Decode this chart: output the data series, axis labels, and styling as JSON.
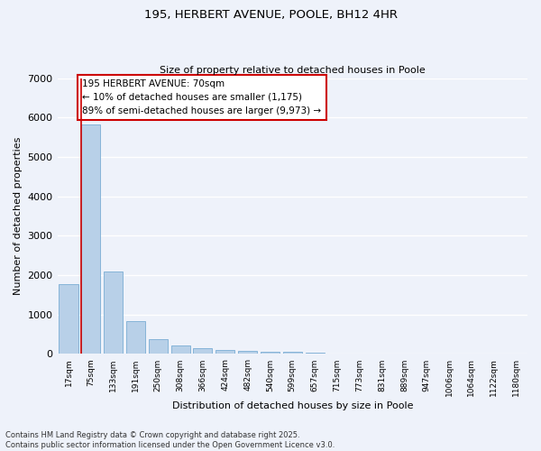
{
  "title_line1": "195, HERBERT AVENUE, POOLE, BH12 4HR",
  "title_line2": "Size of property relative to detached houses in Poole",
  "xlabel": "Distribution of detached houses by size in Poole",
  "ylabel": "Number of detached properties",
  "categories": [
    "17sqm",
    "75sqm",
    "133sqm",
    "191sqm",
    "250sqm",
    "308sqm",
    "366sqm",
    "424sqm",
    "482sqm",
    "540sqm",
    "599sqm",
    "657sqm",
    "715sqm",
    "773sqm",
    "831sqm",
    "889sqm",
    "947sqm",
    "1006sqm",
    "1064sqm",
    "1122sqm",
    "1180sqm"
  ],
  "values": [
    1780,
    5820,
    2090,
    830,
    380,
    220,
    150,
    100,
    75,
    60,
    50,
    30,
    20,
    15,
    10,
    8,
    5,
    4,
    3,
    2,
    2
  ],
  "bar_color": "#b8d0e8",
  "bar_edge_color": "#7aadd4",
  "annotation_text": "195 HERBERT AVENUE: 70sqm\n← 10% of detached houses are smaller (1,175)\n89% of semi-detached houses are larger (9,973) →",
  "annotation_box_color": "#ffffff",
  "annotation_box_edge_color": "#cc0000",
  "property_line_color": "#cc0000",
  "ylim": [
    0,
    7000
  ],
  "yticks": [
    0,
    1000,
    2000,
    3000,
    4000,
    5000,
    6000,
    7000
  ],
  "background_color": "#eef2fa",
  "grid_color": "#ffffff",
  "footer_line1": "Contains HM Land Registry data © Crown copyright and database right 2025.",
  "footer_line2": "Contains public sector information licensed under the Open Government Licence v3.0."
}
